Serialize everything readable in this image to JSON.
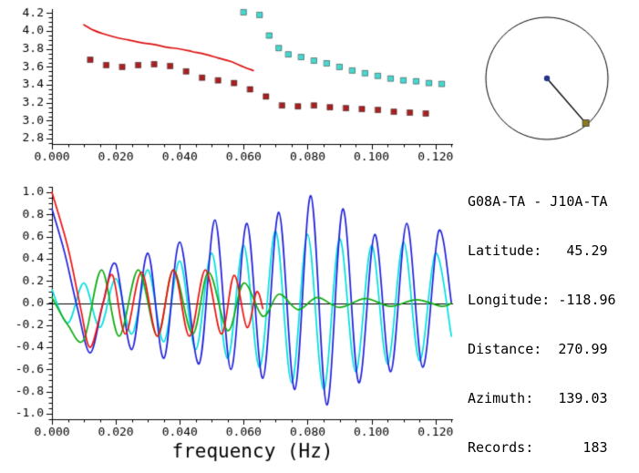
{
  "station": {
    "pair": "G08A-TA - J10A-TA",
    "lines": [
      "Latitude:   45.29",
      "Longitude: -118.96",
      "Distance:  270.99",
      "Azimuth:   139.03",
      "Records:      183"
    ]
  },
  "chart_data": [
    {
      "id": "dispersion-panel",
      "type": "scatter",
      "title": "",
      "xlabel": "",
      "ylabel": "",
      "xlim": [
        0,
        0.1255
      ],
      "ylim": [
        2.74,
        4.245
      ],
      "xticks": [
        0,
        0.02,
        0.04,
        0.06,
        0.08,
        0.1,
        0.12
      ],
      "xtick_labels": [
        "0.000",
        "0.020",
        "0.040",
        "0.060",
        "0.080",
        "0.100",
        "0.120"
      ],
      "yticks": [
        2.8,
        3.0,
        3.2,
        3.4,
        3.6,
        3.8,
        4.0,
        4.2
      ],
      "ytick_labels": [
        "2.8",
        "3.0",
        "3.2",
        "3.4",
        "3.6",
        "3.8",
        "4.0",
        "4.2"
      ],
      "grid": false,
      "series": [
        {
          "name": "reference-dispersion-curve",
          "type": "line",
          "smooth": true,
          "color": "#dd1111",
          "x": [
            0.01,
            0.013,
            0.016,
            0.02,
            0.024,
            0.028,
            0.032,
            0.036,
            0.04,
            0.044,
            0.048,
            0.052,
            0.056,
            0.06,
            0.063
          ],
          "y": [
            4.07,
            4.01,
            3.97,
            3.93,
            3.9,
            3.87,
            3.85,
            3.82,
            3.8,
            3.77,
            3.74,
            3.7,
            3.66,
            3.6,
            3.56
          ]
        },
        {
          "name": "dark-red-velocity-picks",
          "type": "scatter",
          "marker": "square",
          "color": "#aa2020",
          "x": [
            0.012,
            0.017,
            0.022,
            0.027,
            0.032,
            0.037,
            0.042,
            0.047,
            0.052,
            0.057,
            0.062,
            0.067,
            0.072,
            0.077,
            0.082,
            0.087,
            0.092,
            0.097,
            0.102,
            0.107,
            0.112,
            0.117
          ],
          "y": [
            3.68,
            3.62,
            3.6,
            3.62,
            3.63,
            3.61,
            3.55,
            3.48,
            3.45,
            3.42,
            3.35,
            3.27,
            3.17,
            3.16,
            3.17,
            3.15,
            3.14,
            3.13,
            3.12,
            3.1,
            3.09,
            3.08
          ]
        },
        {
          "name": "cyan-velocity-picks",
          "type": "scatter",
          "marker": "square",
          "color": "#45d8d0",
          "x": [
            0.06,
            0.065,
            0.068,
            0.071,
            0.074,
            0.078,
            0.082,
            0.086,
            0.09,
            0.094,
            0.098,
            0.102,
            0.106,
            0.11,
            0.114,
            0.118,
            0.122
          ],
          "y": [
            4.21,
            4.18,
            3.95,
            3.81,
            3.74,
            3.71,
            3.67,
            3.64,
            3.6,
            3.56,
            3.53,
            3.5,
            3.47,
            3.45,
            3.44,
            3.42,
            3.41
          ]
        }
      ]
    },
    {
      "id": "waveform-panel",
      "type": "line",
      "title": "",
      "xlabel": "frequency (Hz)",
      "ylabel": "",
      "xlim": [
        0,
        0.1255
      ],
      "ylim": [
        -1.05,
        1.05
      ],
      "xticks": [
        0,
        0.02,
        0.04,
        0.06,
        0.08,
        0.1,
        0.12
      ],
      "xtick_labels": [
        "0.000",
        "0.020",
        "0.040",
        "0.060",
        "0.080",
        "0.100",
        "0.120"
      ],
      "yticks": [
        -1.0,
        -0.8,
        -0.6,
        -0.4,
        -0.2,
        0.0,
        0.2,
        0.4,
        0.6,
        0.8,
        1.0
      ],
      "ytick_labels": [
        "-1.0",
        "-0.8",
        "-0.6",
        "-0.4",
        "-0.2",
        "0.0",
        "0.2",
        "0.4",
        "0.6",
        "0.8",
        "1.0"
      ],
      "zero_line": true,
      "grid": false,
      "series": [
        {
          "name": "cyan-trace",
          "type": "line",
          "smooth": true,
          "color": "#00e0e0",
          "x": [
            0.0,
            0.005,
            0.01,
            0.015,
            0.02,
            0.025,
            0.03,
            0.035,
            0.04,
            0.045,
            0.05,
            0.055,
            0.06,
            0.065,
            0.07,
            0.075,
            0.08,
            0.085,
            0.09,
            0.095,
            0.1,
            0.105,
            0.11,
            0.115,
            0.12,
            0.125
          ],
          "y": [
            0.12,
            -0.18,
            0.18,
            -0.22,
            0.22,
            -0.28,
            0.3,
            -0.35,
            0.38,
            -0.42,
            0.45,
            -0.5,
            0.52,
            -0.58,
            0.65,
            -0.72,
            0.62,
            -0.78,
            0.58,
            -0.62,
            0.52,
            -0.55,
            0.55,
            -0.52,
            0.45,
            -0.3
          ]
        },
        {
          "name": "blue-trace",
          "type": "line",
          "smooth": true,
          "color": "#2020dd",
          "x": [
            0.0,
            0.004,
            0.008,
            0.012,
            0.016,
            0.02,
            0.025,
            0.03,
            0.035,
            0.04,
            0.046,
            0.051,
            0.056,
            0.061,
            0.066,
            0.071,
            0.076,
            0.081,
            0.086,
            0.091,
            0.096,
            0.101,
            0.106,
            0.111,
            0.116,
            0.121,
            0.125
          ],
          "y": [
            0.85,
            0.45,
            -0.05,
            -0.45,
            0.0,
            0.35,
            -0.42,
            0.45,
            -0.5,
            0.55,
            -0.55,
            0.75,
            -0.6,
            0.72,
            -0.68,
            0.82,
            -0.78,
            0.97,
            -0.92,
            0.85,
            -0.72,
            0.62,
            -0.62,
            0.72,
            -0.58,
            0.65,
            0.0
          ]
        },
        {
          "name": "green-trace",
          "type": "line",
          "smooth": true,
          "color": "#11aa11",
          "x": [
            0.0,
            0.005,
            0.01,
            0.0155,
            0.021,
            0.027,
            0.033,
            0.038,
            0.044,
            0.049,
            0.055,
            0.06,
            0.066,
            0.071,
            0.077,
            0.083,
            0.09,
            0.098,
            0.106,
            0.114,
            0.122,
            0.125
          ],
          "y": [
            0.05,
            -0.2,
            -0.33,
            0.3,
            -0.3,
            0.3,
            -0.3,
            0.3,
            -0.28,
            0.28,
            -0.25,
            0.18,
            -0.12,
            0.08,
            -0.06,
            0.05,
            -0.04,
            0.04,
            -0.03,
            0.03,
            -0.03,
            0.0
          ]
        },
        {
          "name": "red-trace",
          "type": "line",
          "smooth": true,
          "color": "#ee1111",
          "x": [
            0.0,
            0.005,
            0.009,
            0.012,
            0.016,
            0.019,
            0.023,
            0.028,
            0.033,
            0.038,
            0.043,
            0.048,
            0.053,
            0.057,
            0.061,
            0.064,
            0.066
          ],
          "y": [
            1.0,
            0.5,
            -0.05,
            -0.4,
            0.0,
            0.25,
            -0.28,
            0.28,
            -0.3,
            0.3,
            -0.3,
            0.3,
            -0.28,
            0.25,
            -0.22,
            0.1,
            -0.05
          ]
        }
      ]
    },
    {
      "id": "azimuth-diagram",
      "type": "other",
      "azimuth_deg": 139.03,
      "circle_color": "#000000",
      "center_dot_color": "#223388",
      "station_marker_color": "#8a7a20"
    }
  ]
}
